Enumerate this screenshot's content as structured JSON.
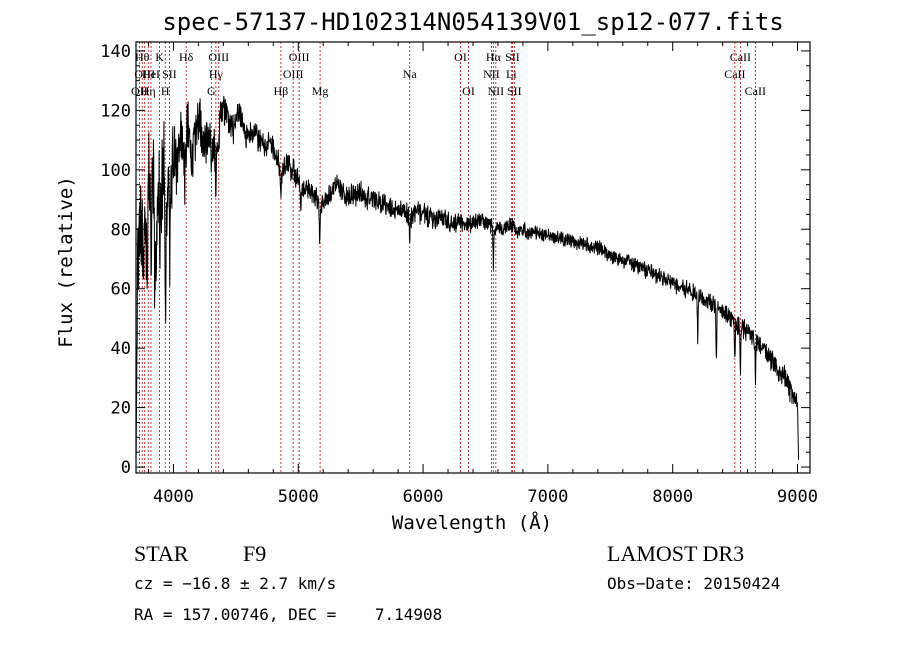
{
  "chart_data": {
    "type": "line",
    "title": "spec-57137-HD102314N054139V01_sp12-077.fits",
    "xlabel": "Wavelength (Å)",
    "ylabel": "Flux (relative)",
    "xlim": [
      3700,
      9100
    ],
    "ylim": [
      -2,
      143
    ],
    "xticks": [
      4000,
      5000,
      6000,
      7000,
      8000,
      9000
    ],
    "yticks": [
      0,
      20,
      40,
      60,
      80,
      100,
      120,
      140
    ],
    "grid": false,
    "series": [
      {
        "name": "flux",
        "anchors": [
          [
            3700,
            0
          ],
          [
            3712,
            60
          ],
          [
            3725,
            100
          ],
          [
            3740,
            78
          ],
          [
            3760,
            92
          ],
          [
            3780,
            75
          ],
          [
            3800,
            98
          ],
          [
            3820,
            85
          ],
          [
            3840,
            102
          ],
          [
            3860,
            68
          ],
          [
            3880,
            100
          ],
          [
            3900,
            88
          ],
          [
            3920,
            105
          ],
          [
            3940,
            80
          ],
          [
            3960,
            110
          ],
          [
            3980,
            92
          ],
          [
            4000,
            108
          ],
          [
            4030,
            95
          ],
          [
            4060,
            115
          ],
          [
            4090,
            100
          ],
          [
            4110,
            116
          ],
          [
            4150,
            102
          ],
          [
            4200,
            118
          ],
          [
            4250,
            110
          ],
          [
            4300,
            112
          ],
          [
            4340,
            105
          ],
          [
            4380,
            118
          ],
          [
            4430,
            120
          ],
          [
            4480,
            113
          ],
          [
            4530,
            120
          ],
          [
            4580,
            112
          ],
          [
            4630,
            112
          ],
          [
            4680,
            110
          ],
          [
            4730,
            108
          ],
          [
            4780,
            108
          ],
          [
            4830,
            104
          ],
          [
            4860,
            100
          ],
          [
            4900,
            102
          ],
          [
            4950,
            100
          ],
          [
            5000,
            97
          ],
          [
            5050,
            94
          ],
          [
            5100,
            93
          ],
          [
            5150,
            90
          ],
          [
            5180,
            88
          ],
          [
            5250,
            92
          ],
          [
            5300,
            95
          ],
          [
            5350,
            93
          ],
          [
            5400,
            91
          ],
          [
            5450,
            92
          ],
          [
            5500,
            92
          ],
          [
            5550,
            90
          ],
          [
            5600,
            90
          ],
          [
            5650,
            89
          ],
          [
            5700,
            88
          ],
          [
            5750,
            87
          ],
          [
            5800,
            87
          ],
          [
            5850,
            86
          ],
          [
            5900,
            84
          ],
          [
            5950,
            86
          ],
          [
            6000,
            85
          ],
          [
            6050,
            84
          ],
          [
            6100,
            83
          ],
          [
            6150,
            84
          ],
          [
            6200,
            83
          ],
          [
            6250,
            82
          ],
          [
            6300,
            83
          ],
          [
            6350,
            81
          ],
          [
            6400,
            82
          ],
          [
            6450,
            83
          ],
          [
            6500,
            82
          ],
          [
            6550,
            81
          ],
          [
            6600,
            80
          ],
          [
            6650,
            80
          ],
          [
            6700,
            82
          ],
          [
            6750,
            79
          ],
          [
            6800,
            80
          ],
          [
            6850,
            79
          ],
          [
            6900,
            79
          ],
          [
            6950,
            78
          ],
          [
            7000,
            78
          ],
          [
            7100,
            77
          ],
          [
            7200,
            76
          ],
          [
            7300,
            75
          ],
          [
            7400,
            74
          ],
          [
            7500,
            71
          ],
          [
            7600,
            70
          ],
          [
            7700,
            68
          ],
          [
            7800,
            66
          ],
          [
            7900,
            64
          ],
          [
            8000,
            62
          ],
          [
            8100,
            60
          ],
          [
            8200,
            58
          ],
          [
            8300,
            55
          ],
          [
            8400,
            52
          ],
          [
            8500,
            49
          ],
          [
            8600,
            45
          ],
          [
            8700,
            42
          ],
          [
            8800,
            35
          ],
          [
            8900,
            30
          ],
          [
            8950,
            25
          ],
          [
            9000,
            20
          ],
          [
            9010,
            0
          ]
        ],
        "noise": [
          [
            3700,
            15
          ],
          [
            3950,
            12
          ],
          [
            4300,
            6
          ],
          [
            4500,
            4
          ],
          [
            5000,
            3.2
          ],
          [
            6000,
            3
          ],
          [
            6600,
            2.2
          ],
          [
            7000,
            2
          ],
          [
            8000,
            2.3
          ],
          [
            9000,
            3.5
          ]
        ],
        "dips": [
          [
            3725,
            30
          ],
          [
            3760,
            25
          ],
          [
            3790,
            22
          ],
          [
            3820,
            20
          ],
          [
            3850,
            28
          ],
          [
            3890,
            25
          ],
          [
            3935,
            40
          ],
          [
            3970,
            45
          ],
          [
            4102,
            12
          ],
          [
            4305,
            14
          ],
          [
            4340,
            12
          ],
          [
            4861,
            10
          ],
          [
            5020,
            10
          ],
          [
            5172,
            14
          ],
          [
            5893,
            7
          ],
          [
            6563,
            12
          ],
          [
            8200,
            14
          ],
          [
            8350,
            18
          ],
          [
            8498,
            12
          ],
          [
            8542,
            15
          ],
          [
            8662,
            12
          ]
        ]
      }
    ],
    "lines": [
      {
        "wave": 3727,
        "label": "OII",
        "row": 2
      },
      {
        "wave": 3750,
        "label": "Hθ",
        "row": 0
      },
      {
        "wave": 3770,
        "label": "OIII",
        "row": 1
      },
      {
        "wave": 3798,
        "label": "Hη",
        "row": 2
      },
      {
        "wave": 3820,
        "label": "HeI",
        "row": 1
      },
      {
        "wave": 3889,
        "label": "K",
        "row": 0
      },
      {
        "wave": 3934,
        "label": "H",
        "row": 2
      },
      {
        "wave": 3968,
        "label": "SII",
        "row": 1
      },
      {
        "wave": 4102,
        "label": "Hδ",
        "row": 0
      },
      {
        "wave": 4304,
        "label": "G",
        "row": 2
      },
      {
        "wave": 4340,
        "label": "Hγ",
        "row": 1
      },
      {
        "wave": 4363,
        "label": "OIII",
        "row": 0
      },
      {
        "wave": 4861,
        "label": "Hβ",
        "row": 2
      },
      {
        "wave": 4959,
        "label": "OIII",
        "row": 1
      },
      {
        "wave": 5007,
        "label": "OIII",
        "row": 0
      },
      {
        "wave": 5175,
        "label": "Mg",
        "row": 2
      },
      {
        "wave": 5893,
        "label": "Na",
        "row": 1
      },
      {
        "wave": 6300,
        "label": "OI",
        "row": 0
      },
      {
        "wave": 6364,
        "label": "OI",
        "row": 2
      },
      {
        "wave": 6548,
        "label": "NII",
        "row": 1
      },
      {
        "wave": 6563,
        "label": "Hα",
        "row": 0
      },
      {
        "wave": 6583,
        "label": "NII",
        "row": 2
      },
      {
        "wave": 6707,
        "label": "Li",
        "row": 1
      },
      {
        "wave": 6716,
        "label": "SII",
        "row": 0
      },
      {
        "wave": 6731,
        "label": "SII",
        "row": 2
      },
      {
        "wave": 8498,
        "label": "CaII",
        "row": 1
      },
      {
        "wave": 8542,
        "label": "CaII",
        "row": 0
      },
      {
        "wave": 8662,
        "label": "CaII",
        "row": 2
      }
    ],
    "line_color": "#c00000"
  },
  "info": {
    "object_class": "STAR",
    "subclass": "F9",
    "survey": "LAMOST DR3",
    "redshift": "cz = −16.8 ± 2.7 km/s",
    "obs_date": "Obs−Date: 20150424",
    "coords": "RA = 157.00746, DEC =    7.14908"
  }
}
